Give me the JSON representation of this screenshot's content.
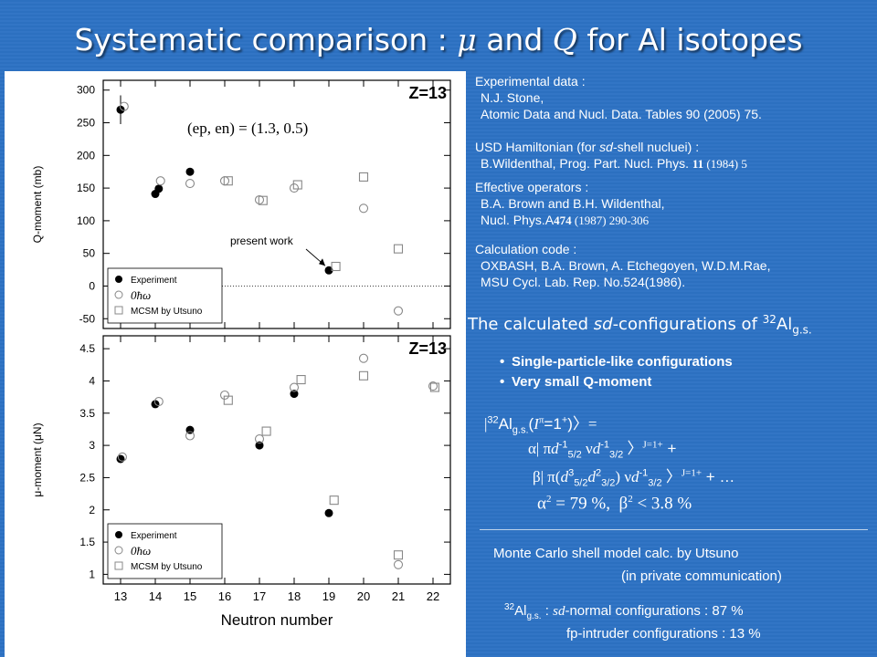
{
  "slide": {
    "title_pre": "Systematic comparison : ",
    "title_mu": "μ",
    "title_mid": " and ",
    "title_q": "Q",
    "title_post": " for Al isotopes"
  },
  "colors": {
    "background": "#2d72c4",
    "text": "#ffffff",
    "plot_background": "#ffffff",
    "markers": "#000000",
    "calc_markers": "#888888"
  },
  "references": {
    "exp_head": "Experimental data :",
    "exp_line1": "N.J. Stone,",
    "exp_line2": "Atomic Data and Nucl. Data. Tables 90 (2005) 75.",
    "usd_head_pre": "USD Hamiltonian (for ",
    "usd_head_it": "sd",
    "usd_head_post": "-shell nucluei) :",
    "usd_line_pre": "B.Wildenthal, Prog. Part. Nucl. Phys. ",
    "usd_line_vol": "11",
    "usd_line_post": " (1984) 5",
    "eff_head": "Effective operators :",
    "eff_line1": "B.A. Brown and B.H. Wildenthal,",
    "eff_line2_pre": "Nucl. Phys.A",
    "eff_line2_vol": "474",
    "eff_line2_post": " (1987) 290-306",
    "code_head": "Calculation code :",
    "code_line1": "OXBASH, B.A. Brown, A. Etchegoyen, W.D.M.Rae,",
    "code_line2": "MSU Cycl. Lab. Rep. No.524(1986)."
  },
  "calc_heading": {
    "pre": "The calculated ",
    "it": "sd",
    "mid": "-configurations of ",
    "mass": "32",
    "elem": "Al",
    "state": "g.s."
  },
  "bullets": [
    "Single-particle-like configurations",
    "Very small Q-moment"
  ],
  "wavefunction": {
    "line1": {
      "bra": "|",
      "mass": "32",
      "elem": "Al",
      "state": "g.s.",
      "open": "(",
      "I": "I",
      "pi": "π",
      "spin": "=1",
      "parity": "+",
      "close": ")",
      "ket": "〉="
    },
    "line2": {
      "coef": "α",
      "pi": "| π",
      "d1": "d",
      "d1_sup": "-1",
      "d1_sub": "5/2",
      "nu": " ν",
      "d2": "d",
      "d2_sup": "-1",
      "d2_sub": "3/2",
      "ket": " 〉",
      "J": "J=1+",
      "plus": " +"
    },
    "line3": {
      "coef": "β",
      "pi": "| π(",
      "d1": "d",
      "d1_sup": "3",
      "d1_sub": "5/2",
      "d2": "d",
      "d2_sup": "2",
      "d2_sub": "3/2",
      "close": ")",
      "nu": " ν",
      "d3": "d",
      "d3_sup": "-1",
      "d3_sub": "3/2",
      "ket": " 〉",
      "J": "J=1+",
      "plus": " + …"
    },
    "line4": {
      "alpha": "α",
      "alpha_exp": "2",
      "alpha_val": " = 79 %,",
      "beta": "β",
      "beta_exp": "2",
      "beta_val": " < 3.8 %"
    }
  },
  "mcsm": {
    "line1": "Monte Carlo shell model calc. by Utsuno",
    "line2": "(in private communication)"
  },
  "configs": {
    "mass": "32",
    "elem": "Al",
    "state": "g.s.",
    "colon": " : ",
    "sd": "sd",
    "normal": "-normal configurations : 87 %",
    "intruder": "fp-intruder configurations : 13 %"
  },
  "chart_data": [
    {
      "type": "scatter",
      "panel": "Q-moment",
      "title": "Z=13",
      "annotation_params": "(ep, en) = (1.3, 0.5)",
      "annotation_arrow": "present work",
      "ylabel": "Q-moment (mb)",
      "ylim": [
        -65,
        315
      ],
      "yticks": [
        -50,
        0,
        50,
        100,
        150,
        200,
        250,
        300
      ],
      "xlim": [
        12.5,
        22.5
      ],
      "xticks": [
        13,
        14,
        15,
        16,
        17,
        18,
        19,
        20,
        21,
        22
      ],
      "zero_line": "dotted",
      "legend": [
        "Experiment",
        "0ħω",
        "MCSM by Utsuno"
      ],
      "legend_position": "bottom-left",
      "series": [
        {
          "name": "Experiment",
          "marker": "filled-circle",
          "points": [
            [
              13,
              270
            ],
            [
              14,
              141
            ],
            [
              14.1,
              149
            ],
            [
              15,
              175
            ],
            [
              19,
              24
            ]
          ],
          "error_bars": [
            [
              13,
              22
            ]
          ]
        },
        {
          "name": "0ħω",
          "marker": "open-circle",
          "points": [
            [
              13.1,
              275
            ],
            [
              14.15,
              161
            ],
            [
              15,
              157
            ],
            [
              16,
              161
            ],
            [
              17,
              132
            ],
            [
              18,
              150
            ],
            [
              20,
              119
            ],
            [
              21,
              -38
            ]
          ]
        },
        {
          "name": "MCSM by Utsuno",
          "marker": "open-square",
          "points": [
            [
              16.1,
              161
            ],
            [
              17.1,
              131
            ],
            [
              18.1,
              155
            ],
            [
              19.2,
              30
            ],
            [
              20,
              167
            ],
            [
              21,
              57
            ]
          ]
        }
      ]
    },
    {
      "type": "scatter",
      "panel": "μ-moment",
      "title": "Z=13",
      "ylabel": "μ-moment (μN)",
      "xlabel": "Neutron number",
      "ylim": [
        0.85,
        4.7
      ],
      "yticks": [
        1,
        1.5,
        2,
        2.5,
        3,
        3.5,
        4,
        4.5
      ],
      "xlim": [
        12.5,
        22.5
      ],
      "xticks": [
        13,
        14,
        15,
        16,
        17,
        18,
        19,
        20,
        21,
        22
      ],
      "legend": [
        "Experiment",
        "0ħω",
        "MCSM by Utsuno"
      ],
      "legend_position": "bottom-left",
      "series": [
        {
          "name": "Experiment",
          "marker": "filled-circle",
          "points": [
            [
              13,
              2.79
            ],
            [
              14,
              3.64
            ],
            [
              15,
              3.24
            ],
            [
              17,
              3.0
            ],
            [
              18,
              3.8
            ],
            [
              19,
              1.95
            ]
          ]
        },
        {
          "name": "0ħω",
          "marker": "open-circle",
          "points": [
            [
              13.05,
              2.82
            ],
            [
              14.1,
              3.68
            ],
            [
              15,
              3.15
            ],
            [
              16,
              3.78
            ],
            [
              17,
              3.1
            ],
            [
              18,
              3.9
            ],
            [
              20,
              4.35
            ],
            [
              21,
              1.15
            ],
            [
              22,
              3.92
            ]
          ]
        },
        {
          "name": "MCSM by Utsuno",
          "marker": "open-square",
          "points": [
            [
              16.1,
              3.7
            ],
            [
              17.2,
              3.22
            ],
            [
              18.2,
              4.02
            ],
            [
              19.15,
              2.15
            ],
            [
              20,
              4.08
            ],
            [
              21,
              1.3
            ],
            [
              22.05,
              3.9
            ]
          ]
        }
      ]
    }
  ]
}
